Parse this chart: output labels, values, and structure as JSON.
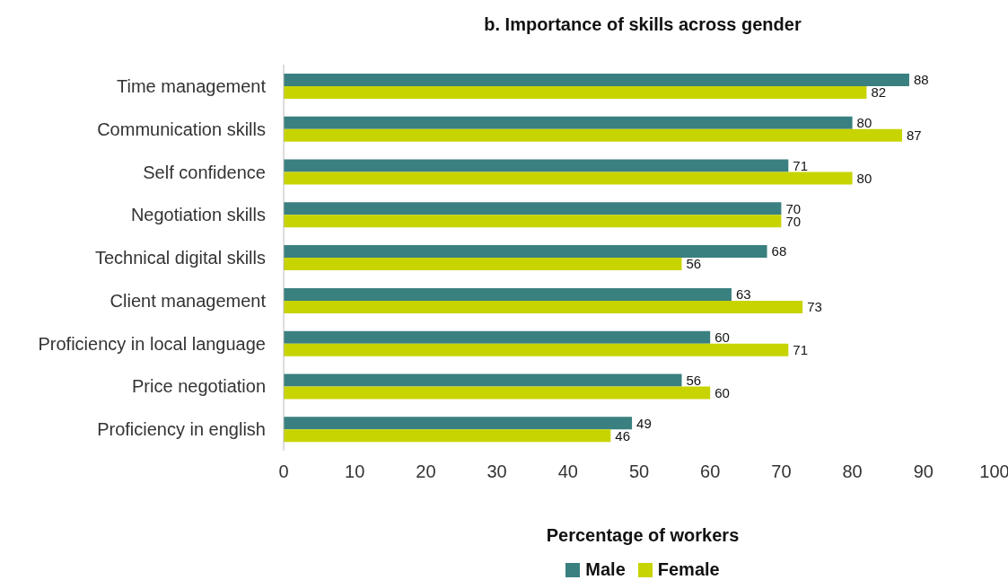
{
  "chart_data": {
    "type": "bar",
    "orientation": "horizontal",
    "title": "b. Importance of skills across gender",
    "xlabel": "Percentage of workers",
    "categories": [
      "Time management",
      "Communication skills",
      "Self confidence",
      "Negotiation skills",
      "Technical digital skills",
      "Client management",
      "Proficiency in local language",
      "Price negotiation",
      "Proficiency in english"
    ],
    "series": [
      {
        "name": "Male",
        "color": "#3a8080",
        "values": [
          88,
          80,
          71,
          70,
          68,
          63,
          60,
          56,
          49
        ]
      },
      {
        "name": "Female",
        "color": "#c8d400",
        "values": [
          82,
          87,
          80,
          70,
          56,
          73,
          71,
          60,
          46
        ]
      }
    ],
    "xlim": [
      0,
      100
    ],
    "xticks": [
      0,
      10,
      20,
      30,
      40,
      50,
      60,
      70,
      80,
      90,
      100
    ],
    "data_labels": true,
    "legend": "bottom",
    "grid": false
  }
}
